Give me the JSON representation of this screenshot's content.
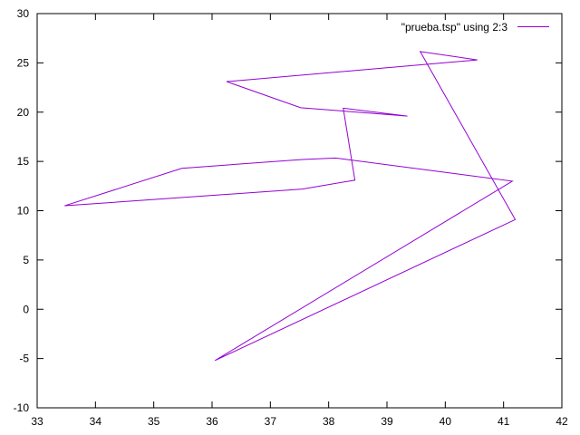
{
  "chart_data": {
    "type": "line",
    "title": "",
    "xlabel": "",
    "ylabel": "",
    "xlim": [
      33,
      42
    ],
    "ylim": [
      -10,
      30
    ],
    "x_ticks": [
      33,
      34,
      35,
      36,
      37,
      38,
      39,
      40,
      41,
      42
    ],
    "y_ticks": [
      -10,
      -5,
      0,
      5,
      10,
      15,
      20,
      25,
      30
    ],
    "grid": false,
    "legend": {
      "position": "top-right"
    },
    "series": [
      {
        "name": "\"prueba.tsp\" using 2:3",
        "color": "#9400d3",
        "points": [
          {
            "x": 36.05,
            "y": -5.2
          },
          {
            "x": 41.2,
            "y": 9.1
          },
          {
            "x": 39.57,
            "y": 26.15
          },
          {
            "x": 40.55,
            "y": 25.3
          },
          {
            "x": 36.25,
            "y": 23.1
          },
          {
            "x": 37.52,
            "y": 20.45
          },
          {
            "x": 39.35,
            "y": 19.6
          },
          {
            "x": 38.25,
            "y": 20.4
          },
          {
            "x": 38.45,
            "y": 13.1
          },
          {
            "x": 37.55,
            "y": 12.2
          },
          {
            "x": 33.47,
            "y": 10.5
          },
          {
            "x": 35.48,
            "y": 14.3
          },
          {
            "x": 37.55,
            "y": 15.2
          },
          {
            "x": 38.12,
            "y": 15.35
          },
          {
            "x": 41.15,
            "y": 13.0
          },
          {
            "x": 36.05,
            "y": -5.2
          }
        ]
      }
    ]
  }
}
